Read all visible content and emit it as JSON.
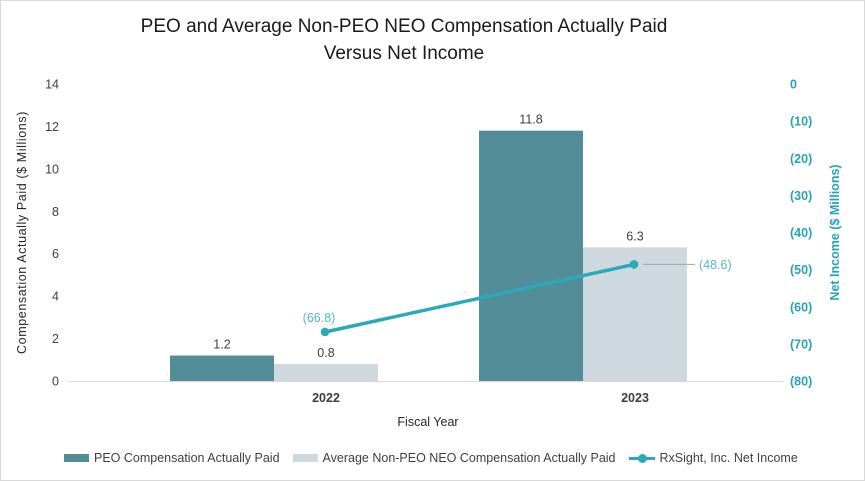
{
  "title": {
    "line1": "PEO and Average Non-PEO NEO Compensation Actually Paid",
    "line2": "Versus Net Income"
  },
  "chart_data": {
    "type": "bar+line combo, dual axis",
    "categories": [
      "2022",
      "2023"
    ],
    "series": [
      {
        "name": "PEO Compensation Actually Paid",
        "type": "bar",
        "axis": "left",
        "color": "#538e98",
        "values": [
          1.2,
          11.8
        ],
        "labels": [
          "1.2",
          "11.8"
        ]
      },
      {
        "name": "Average Non-PEO NEO Compensation Actually Paid",
        "type": "bar",
        "axis": "left",
        "color": "#cdd9de",
        "values": [
          0.8,
          6.3
        ],
        "labels": [
          "0.8",
          "6.3"
        ]
      },
      {
        "name": "RxSight, Inc. Net Income",
        "type": "line",
        "axis": "right",
        "color": "#2aa9b9",
        "label_color": "#56b6c8",
        "values": [
          -66.8,
          -48.6
        ],
        "labels": [
          "(66.8)",
          "(48.6)"
        ]
      }
    ],
    "xlabel": "Fiscal Year",
    "left_axis": {
      "label": "Compensation Actually Paid ($ Millions)",
      "min": 0,
      "max": 14,
      "tick_labels": [
        "0",
        "2",
        "4",
        "6",
        "8",
        "10",
        "12",
        "14"
      ],
      "tick_values": [
        0,
        2,
        4,
        6,
        8,
        10,
        12,
        14
      ],
      "color": "#3f3f3f"
    },
    "right_axis": {
      "label": "Net Income ($ Millions)",
      "min": -80,
      "max": 0,
      "tick_labels": [
        "0",
        "(10)",
        "(20)",
        "(30)",
        "(40)",
        "(50)",
        "(60)",
        "(70)",
        "(80)"
      ],
      "tick_values": [
        0,
        -10,
        -20,
        -30,
        -40,
        -50,
        -60,
        -70,
        -80
      ],
      "color": "#28a3b5"
    },
    "legend_position": "bottom",
    "grid": false,
    "axis_line_color": "#d9d9d9",
    "leader_line_color": "#a6a6a6",
    "bar_label_color": "#3d3d3d",
    "x_tick_color": "#3d3d3d"
  }
}
